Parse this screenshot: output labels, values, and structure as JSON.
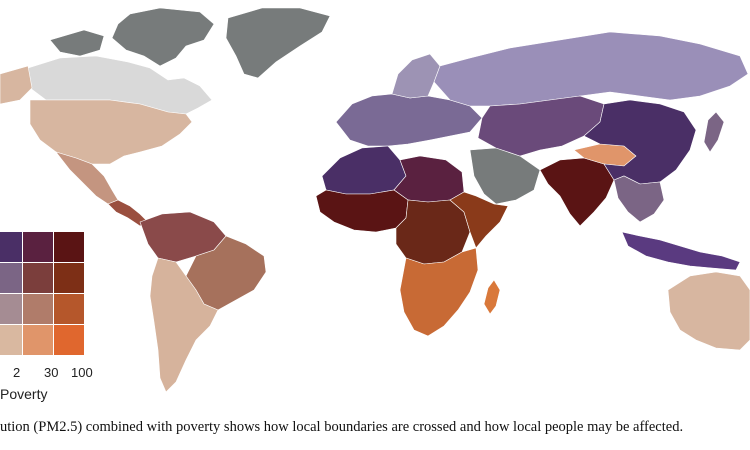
{
  "figure": {
    "caption": "ution (PM2.5) combined with poverty shows how local boundaries are crossed and how local people may be affected."
  },
  "legend": {
    "axis_title": "Poverty",
    "ticks": [
      "2",
      "30",
      "100"
    ],
    "rows": [
      [
        "#4a2f66",
        "#5a2140",
        "#5a1414"
      ],
      [
        "#7b6585",
        "#7b3e3c",
        "#7d2f16"
      ],
      [
        "#a58c93",
        "#b07c6a",
        "#b5572b"
      ],
      [
        "#d9b8a0",
        "#e0956a",
        "#e0672e"
      ]
    ]
  },
  "palette": {
    "no_data": "#777b7b",
    "light_gray": "#d8d8d8",
    "ocean": "#ffffff"
  },
  "regions": [
    {
      "name": "greenland",
      "color": "#777b7b"
    },
    {
      "name": "canada-arctic",
      "color": "#777b7b"
    },
    {
      "name": "canada",
      "color": "#d9d9d9"
    },
    {
      "name": "usa",
      "color": "#d7b6a0"
    },
    {
      "name": "alaska",
      "color": "#d7b6a0"
    },
    {
      "name": "mexico",
      "color": "#c49580"
    },
    {
      "name": "central-america",
      "color": "#9a4f3f"
    },
    {
      "name": "south-america-north",
      "color": "#8a4a4a"
    },
    {
      "name": "south-america-brazil",
      "color": "#a6715c"
    },
    {
      "name": "south-america-south",
      "color": "#d6b39c"
    },
    {
      "name": "europe",
      "color": "#7a6a95"
    },
    {
      "name": "scandinavia",
      "color": "#9d93b4"
    },
    {
      "name": "russia",
      "color": "#9a8fb8"
    },
    {
      "name": "north-africa",
      "color": "#4a2f66"
    },
    {
      "name": "sahara-mid",
      "color": "#5a2140"
    },
    {
      "name": "arabia",
      "color": "#777b7b"
    },
    {
      "name": "west-africa",
      "color": "#5a1414"
    },
    {
      "name": "central-africa",
      "color": "#6a2818"
    },
    {
      "name": "east-africa",
      "color": "#8a3a1a"
    },
    {
      "name": "southern-africa",
      "color": "#c86a35"
    },
    {
      "name": "madagascar",
      "color": "#d9783a"
    },
    {
      "name": "india",
      "color": "#5a1414"
    },
    {
      "name": "central-asia",
      "color": "#6a4a7a"
    },
    {
      "name": "china",
      "color": "#4a2f66"
    },
    {
      "name": "tibet",
      "color": "#e0956a"
    },
    {
      "name": "southeast-asia",
      "color": "#7b6585"
    },
    {
      "name": "indonesia",
      "color": "#5a3a80"
    },
    {
      "name": "japan",
      "color": "#7b6585"
    },
    {
      "name": "australia",
      "color": "#d7b6a0"
    }
  ]
}
